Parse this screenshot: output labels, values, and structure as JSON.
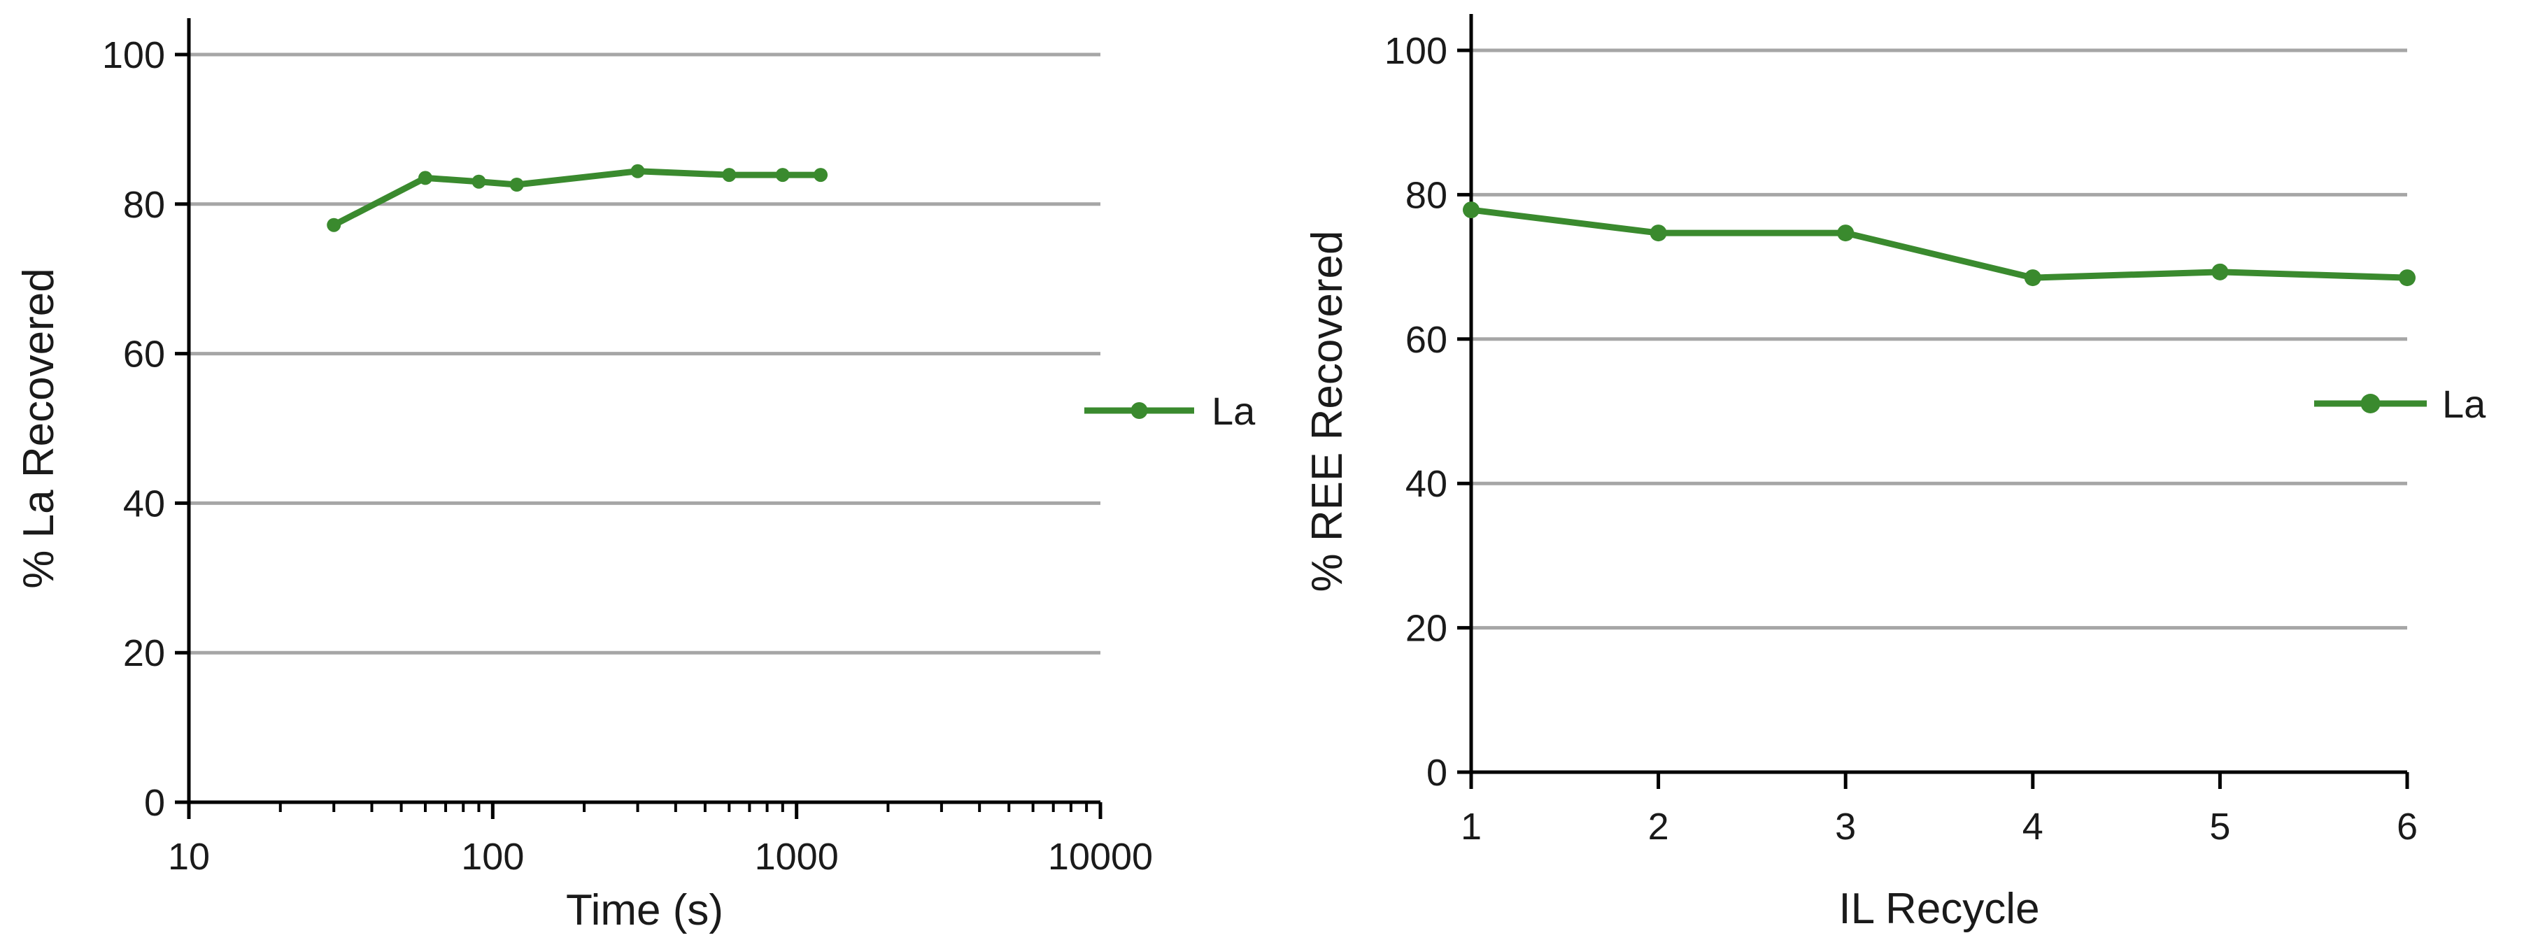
{
  "colors": {
    "series": "#3a8a2e",
    "grid": "#a6a6a6",
    "axis": "#000000",
    "text": "#1a1a1a"
  },
  "chart_data": [
    {
      "type": "line",
      "xscale": "log",
      "xlabel": "Time (s)",
      "ylabel": "% La Recovered",
      "xlim": [
        10,
        10000
      ],
      "ylim": [
        0,
        100
      ],
      "x_tick_labels": [
        "10",
        "100",
        "1000",
        "10000"
      ],
      "y_tick_labels": [
        "0",
        "20",
        "40",
        "60",
        "80",
        "100"
      ],
      "grid": "horizontal",
      "legend_position": "right",
      "series": [
        {
          "name": "La",
          "x": [
            30,
            60,
            90,
            120,
            300,
            600,
            900,
            1200
          ],
          "y": [
            77.2,
            83.5,
            83.0,
            82.6,
            84.4,
            83.9,
            83.9,
            83.9
          ]
        }
      ]
    },
    {
      "type": "line",
      "xscale": "linear",
      "xlabel": "IL Recycle",
      "ylabel": "% REE Recovered",
      "xlim": [
        1,
        6
      ],
      "ylim": [
        0,
        100
      ],
      "x_tick_labels": [
        "1",
        "2",
        "3",
        "4",
        "5",
        "6"
      ],
      "y_tick_labels": [
        "0",
        "20",
        "40",
        "60",
        "80",
        "100"
      ],
      "grid": "horizontal",
      "legend_position": "right",
      "series": [
        {
          "name": "La",
          "x": [
            1,
            2,
            3,
            4,
            5,
            6
          ],
          "y": [
            77.9,
            74.7,
            74.7,
            68.5,
            69.3,
            68.5
          ]
        }
      ]
    }
  ]
}
